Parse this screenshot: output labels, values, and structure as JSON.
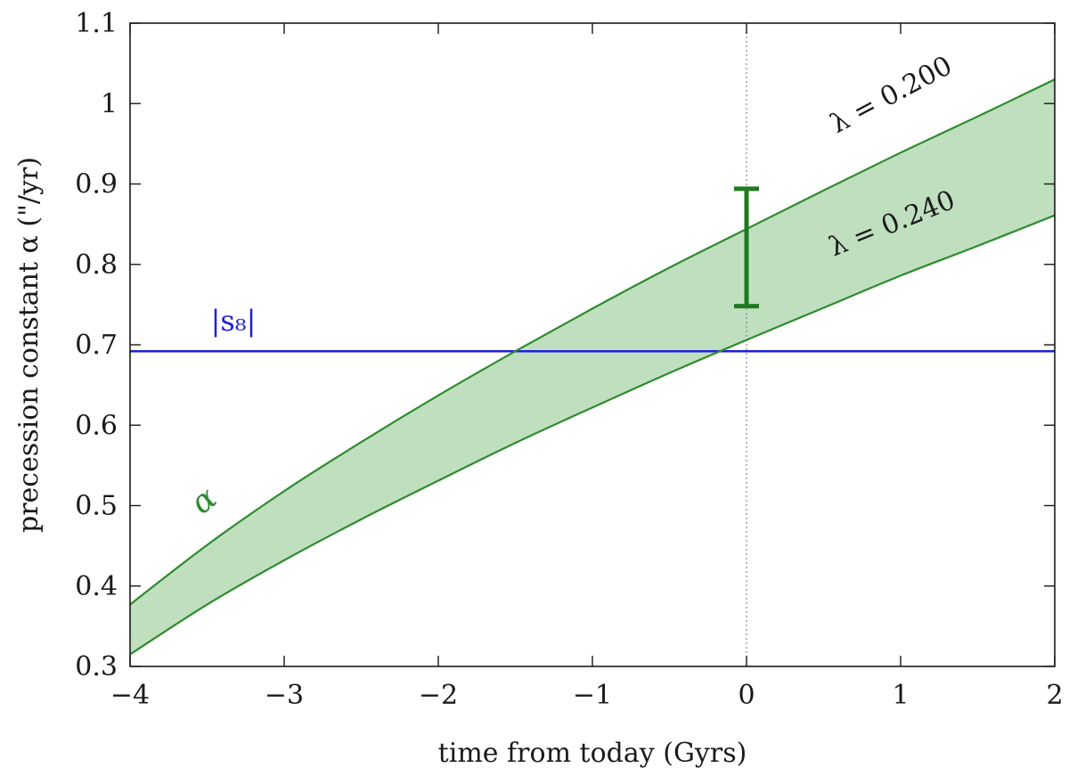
{
  "chart_data": {
    "type": "line",
    "xlabel": "time from today (Gyrs)",
    "ylabel": "precession constant α (\"/yr)",
    "xlim": [
      -4,
      2
    ],
    "ylim": [
      0.3,
      1.1
    ],
    "xticks": [
      -4,
      -3,
      -2,
      -1,
      0,
      1,
      2
    ],
    "yticks": [
      0.3,
      0.4,
      0.5,
      0.6,
      0.7,
      0.8,
      0.9,
      1.0,
      1.1
    ],
    "xtick_labels": [
      "−4",
      "−3",
      "−2",
      "−1",
      "0",
      "1",
      "2"
    ],
    "ytick_labels": [
      "0.3",
      "0.4",
      "0.5",
      "0.6",
      "0.7",
      "0.8",
      "0.9",
      "1",
      "1.1"
    ],
    "grid": false,
    "series": [
      {
        "name": "λ = 0.200",
        "x": [
          -4,
          -3.5,
          -3,
          -2.5,
          -2,
          -1.5,
          -1,
          -0.5,
          0,
          0.5,
          1,
          1.5,
          2
        ],
        "y": [
          0.377,
          0.451,
          0.518,
          0.579,
          0.637,
          0.692,
          0.745,
          0.796,
          0.844,
          0.892,
          0.939,
          0.984,
          1.03
        ]
      },
      {
        "name": "λ = 0.240",
        "x": [
          -4,
          -3.5,
          -3,
          -2.5,
          -2,
          -1.5,
          -1,
          -0.5,
          0,
          0.5,
          1,
          1.5,
          2
        ],
        "y": [
          0.315,
          0.377,
          0.432,
          0.483,
          0.531,
          0.578,
          0.622,
          0.665,
          0.706,
          0.746,
          0.786,
          0.823,
          0.861
        ]
      }
    ],
    "series_label": "α",
    "present_day_range": {
      "x": 0,
      "y_low": 0.748,
      "y_high": 0.894
    },
    "hline": {
      "name": "|s₈|",
      "y": 0.692
    },
    "vline": {
      "x": 0
    },
    "colors": {
      "curve": "#2e8b2e",
      "fill": "#bfdfbf",
      "errorbar": "#1f7a1f",
      "hline": "#1f1fdd",
      "vline": "#888888",
      "axis": "#1a1a1a"
    }
  }
}
